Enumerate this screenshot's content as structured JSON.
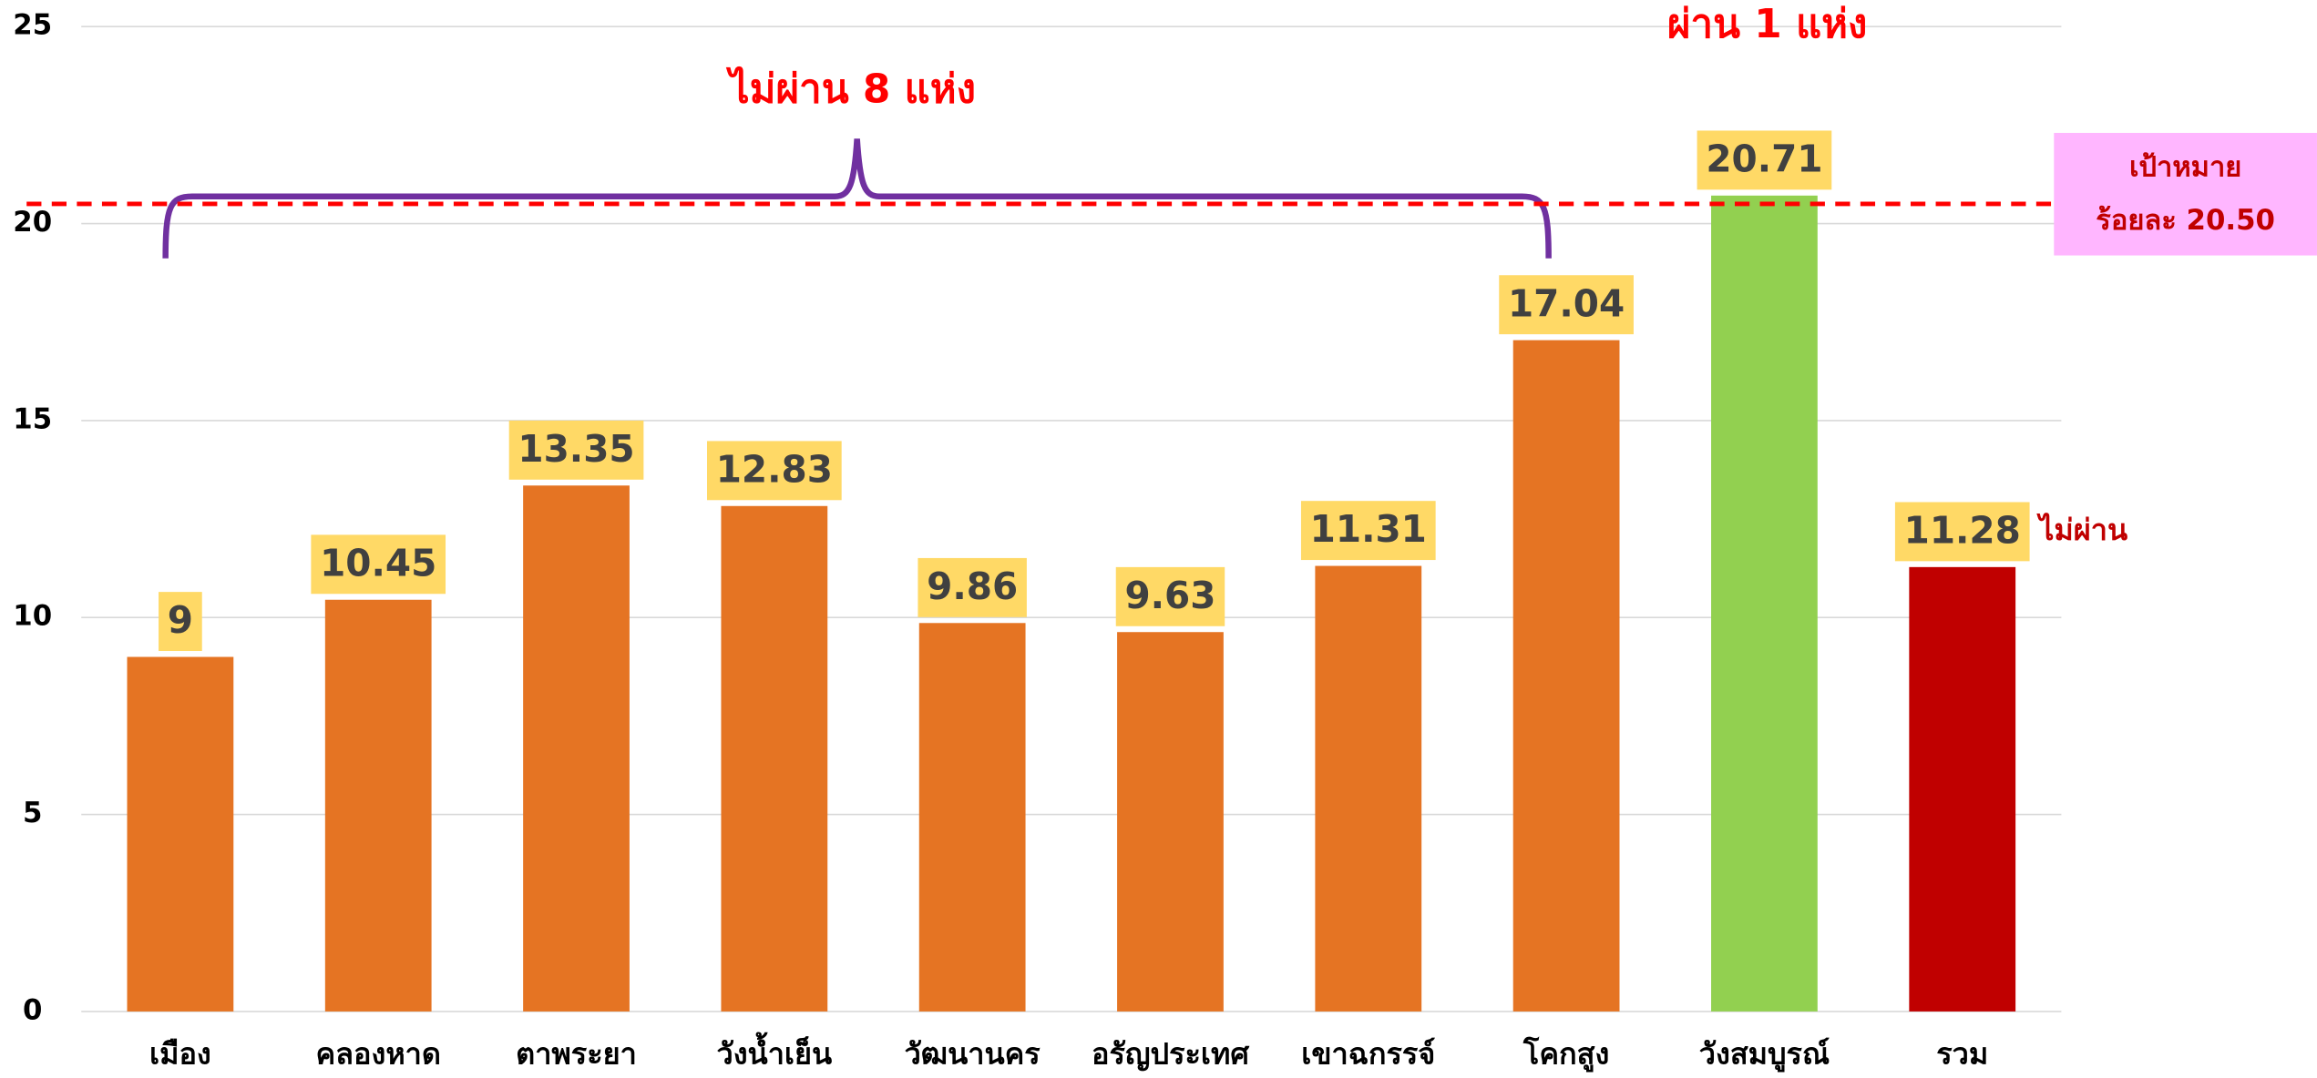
{
  "chart_data": {
    "type": "bar",
    "categories": [
      "เมือง",
      "คลองหาด",
      "ตาพระยา",
      "วังน้ำเย็น",
      "วัฒนานคร",
      "อรัญประเทศ",
      "เขาฉกรรจ์",
      "โคกสูง",
      "วังสมบูรณ์",
      "รวม"
    ],
    "values": [
      9,
      10.45,
      13.35,
      12.83,
      9.86,
      9.63,
      11.31,
      17.04,
      20.71,
      11.28
    ],
    "colors": [
      "#E57423",
      "#E57423",
      "#E57423",
      "#E57423",
      "#E57423",
      "#E57423",
      "#E57423",
      "#E57423",
      "#92D050",
      "#C00000"
    ],
    "ylim": [
      0,
      25
    ],
    "yticks": [
      0,
      5,
      10,
      15,
      20,
      25
    ],
    "grid": true,
    "target": {
      "value": 20.5,
      "color": "#FF0000",
      "label_line1": "เป้าหมาย",
      "label_line2": "ร้อยละ 20.50"
    },
    "annotations": {
      "fail_group": "ไม่ผ่าน 8 แห่ง",
      "pass_group": "ผ่าน 1 แห่ง",
      "total_status": "ไม่ผ่าน"
    }
  }
}
